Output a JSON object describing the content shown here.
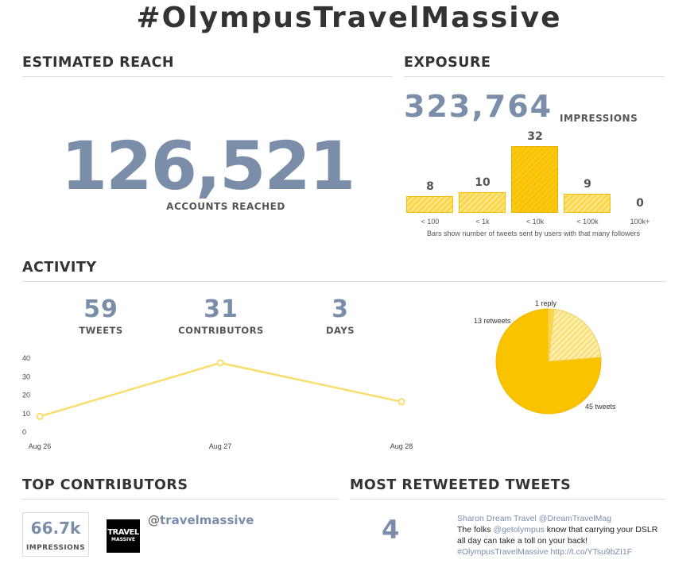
{
  "title": "#OlympusTravelMassive",
  "reach": {
    "heading": "ESTIMATED REACH",
    "value": "126,521",
    "label": "ACCOUNTS REACHED"
  },
  "exposure": {
    "heading": "EXPOSURE",
    "impressions": "323,764",
    "impressions_label": "IMPRESSIONS",
    "note": "Bars show number of tweets sent by users with that many followers"
  },
  "activity": {
    "heading": "ACTIVITY",
    "stats": [
      {
        "value": "59",
        "label": "TWEETS"
      },
      {
        "value": "31",
        "label": "CONTRIBUTORS"
      },
      {
        "value": "3",
        "label": "DAYS"
      }
    ]
  },
  "top_contributors": {
    "heading": "TOP CONTRIBUTORS",
    "impressions": "66.7k",
    "impressions_label": "IMPRESSIONS",
    "logo_line1": "TRAVEL",
    "logo_line2": "MASSIVE",
    "at": "@",
    "handle": "travelmassive"
  },
  "most_retweeted": {
    "heading": "MOST RETWEETED TWEETS",
    "count": "4",
    "author": "Sharon Dream Travel @DreamTravelMag",
    "text_1": "The folks ",
    "mention": "@getolympus",
    "text_2": " know that carrying your DSLR all day can take a toll on your back!",
    "hashtag_link": "#OlympusTravelMassive http://t.co/YTsu9bZI1F"
  },
  "colors": {
    "accent": "#7a8eaa",
    "yellow": "#f9c300",
    "yellow_light": "#fbd645",
    "line": "#f9de6e"
  },
  "chart_data": [
    {
      "type": "bar",
      "categories": [
        "< 100",
        "< 1k",
        "< 10k",
        "< 100k",
        "100k+"
      ],
      "values": [
        8,
        10,
        32,
        9,
        0
      ],
      "ylim": [
        0,
        32
      ],
      "highlight": "< 10k"
    },
    {
      "type": "line",
      "x": [
        "Aug 26",
        "Aug 27",
        "Aug 28"
      ],
      "y": [
        8,
        37,
        16
      ],
      "ylim": [
        0,
        40
      ],
      "yticks": [
        0,
        10,
        20,
        30,
        40
      ]
    },
    {
      "type": "pie",
      "labels": [
        "45 tweets",
        "13 retweets",
        "1 reply"
      ],
      "values": [
        45,
        13,
        1
      ]
    }
  ]
}
